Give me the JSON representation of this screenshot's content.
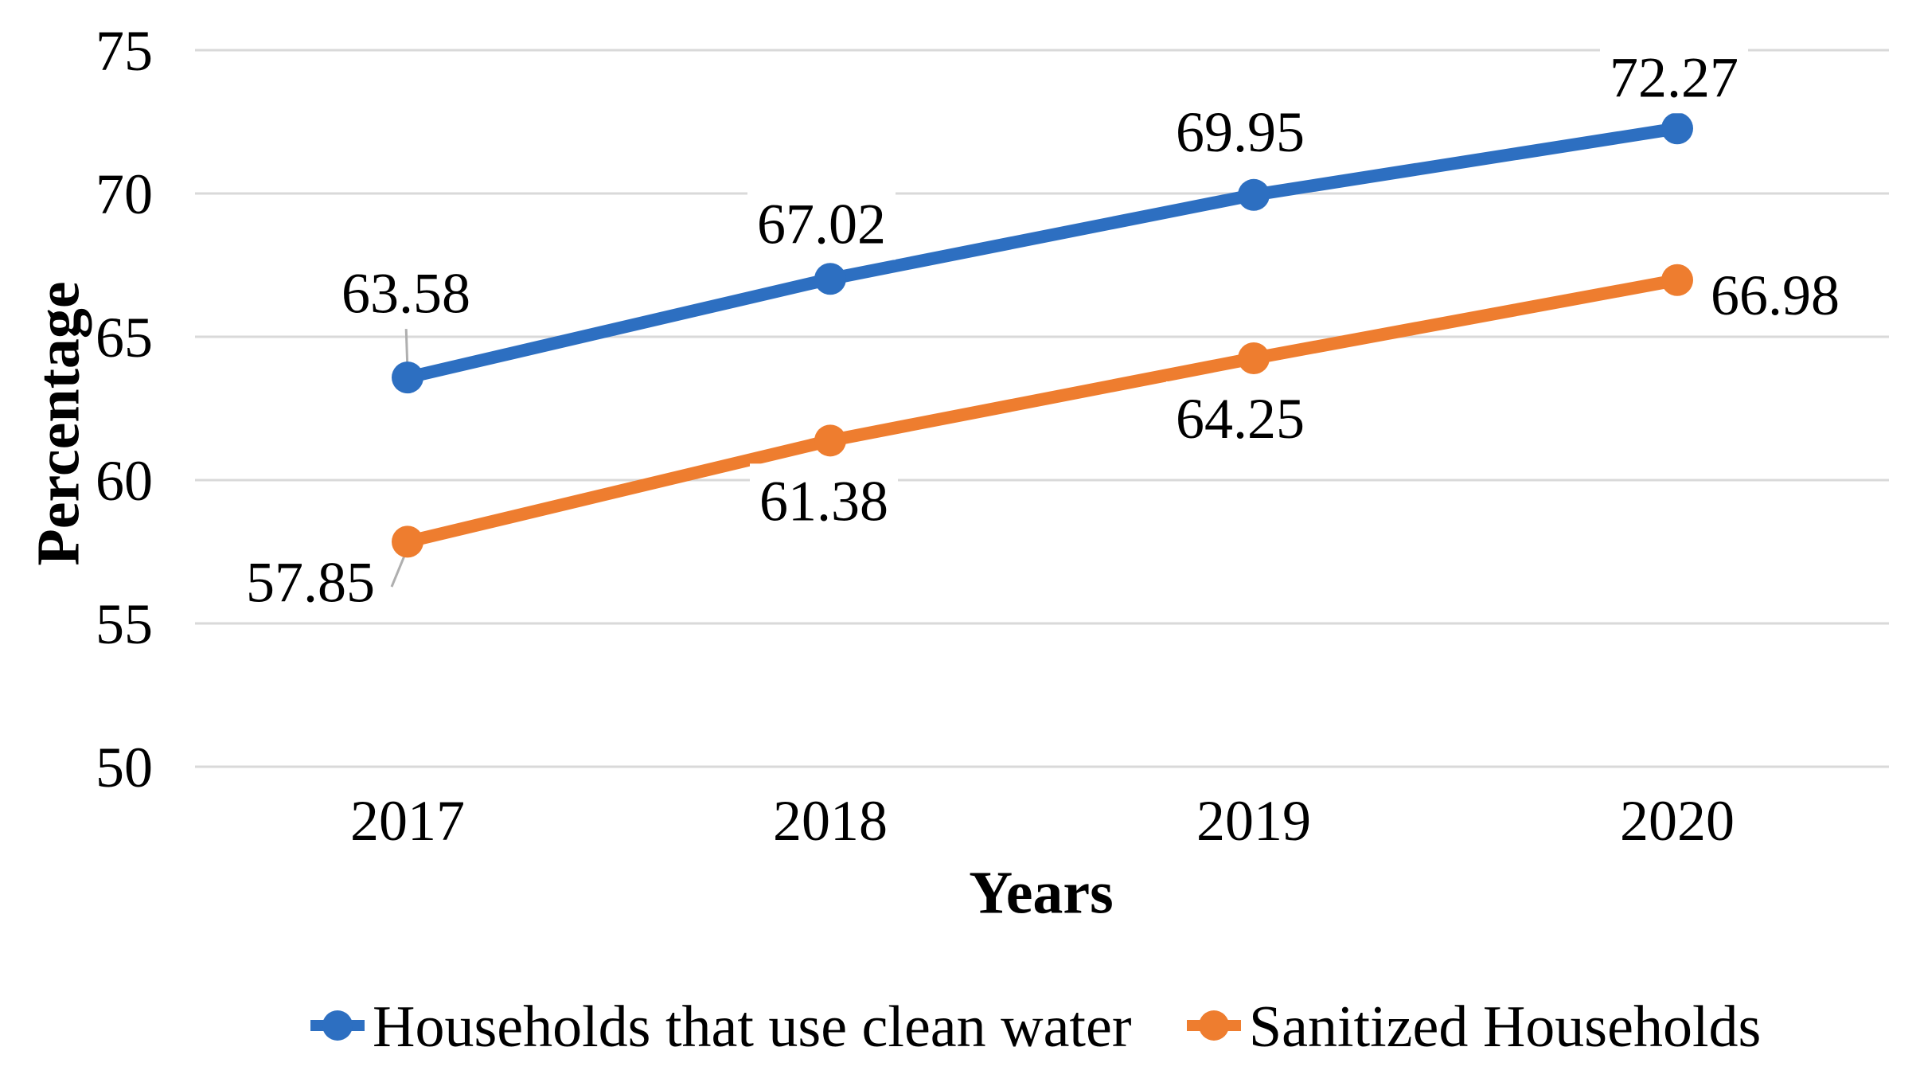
{
  "figure": {
    "background": "#FFFFFF",
    "text_color": "#000000"
  },
  "chart_data": {
    "type": "line",
    "title": "",
    "xlabel": "Years",
    "ylabel": "Percentage",
    "categories": [
      "2017",
      "2018",
      "2019",
      "2020"
    ],
    "ylim": [
      50,
      75
    ],
    "yticks": [
      "50",
      "55",
      "60",
      "65",
      "70",
      "75"
    ],
    "grid": "horizontal",
    "legend_position": "bottom",
    "series": [
      {
        "name": "Households that use clean water",
        "color": "#2D6FC1",
        "values": [
          63.58,
          67.02,
          69.95,
          72.27
        ],
        "data_labels": [
          "63.58",
          "67.02",
          "69.95",
          "72.27"
        ]
      },
      {
        "name": "Sanitized Households",
        "color": "#EE7D2F",
        "values": [
          57.85,
          61.38,
          64.25,
          66.98
        ],
        "data_labels": [
          "57.85",
          "61.38",
          "64.25",
          "66.98"
        ]
      }
    ],
    "colors": {
      "gridline": "#D9D9D9",
      "leader_line": "#AFAFAF",
      "data_label_background": "#FFFFFF"
    }
  }
}
